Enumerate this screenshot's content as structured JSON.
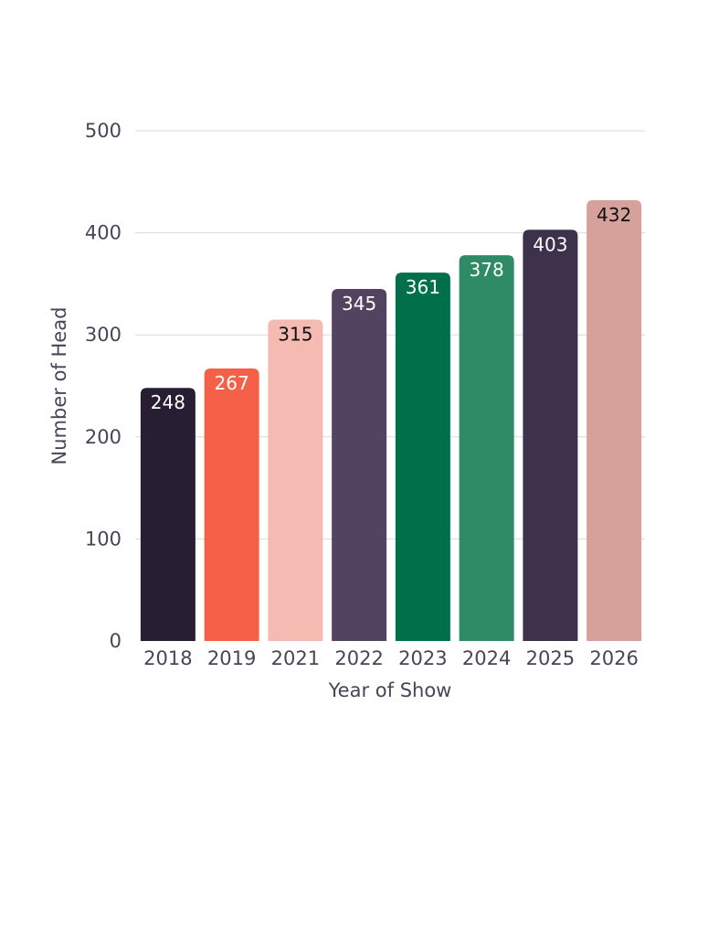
{
  "chart_data": {
    "type": "bar",
    "title": "",
    "xlabel": "Year of Show",
    "ylabel": "Number of Head",
    "categories": [
      "2018",
      "2019",
      "2021",
      "2022",
      "2023",
      "2024",
      "2025",
      "2026"
    ],
    "values": [
      248,
      267,
      315,
      345,
      361,
      378,
      403,
      432
    ],
    "ylim": [
      0,
      500
    ],
    "yticks": [
      0,
      100,
      200,
      300,
      400,
      500
    ],
    "grid": true,
    "legend": "none",
    "bar_colors": [
      "#281E33",
      "#F56049",
      "#F5BAB2",
      "#524461",
      "#00704A",
      "#2E8B65",
      "#3D314C",
      "#D6A19A"
    ],
    "label_colors": [
      "#ffffff",
      "#ffffff",
      "#111111",
      "#ffffff",
      "#ffffff",
      "#ffffff",
      "#ffffff",
      "#111111"
    ],
    "colors": {
      "axis_text": "#4a4458",
      "grid": "#d9d9d9"
    }
  }
}
